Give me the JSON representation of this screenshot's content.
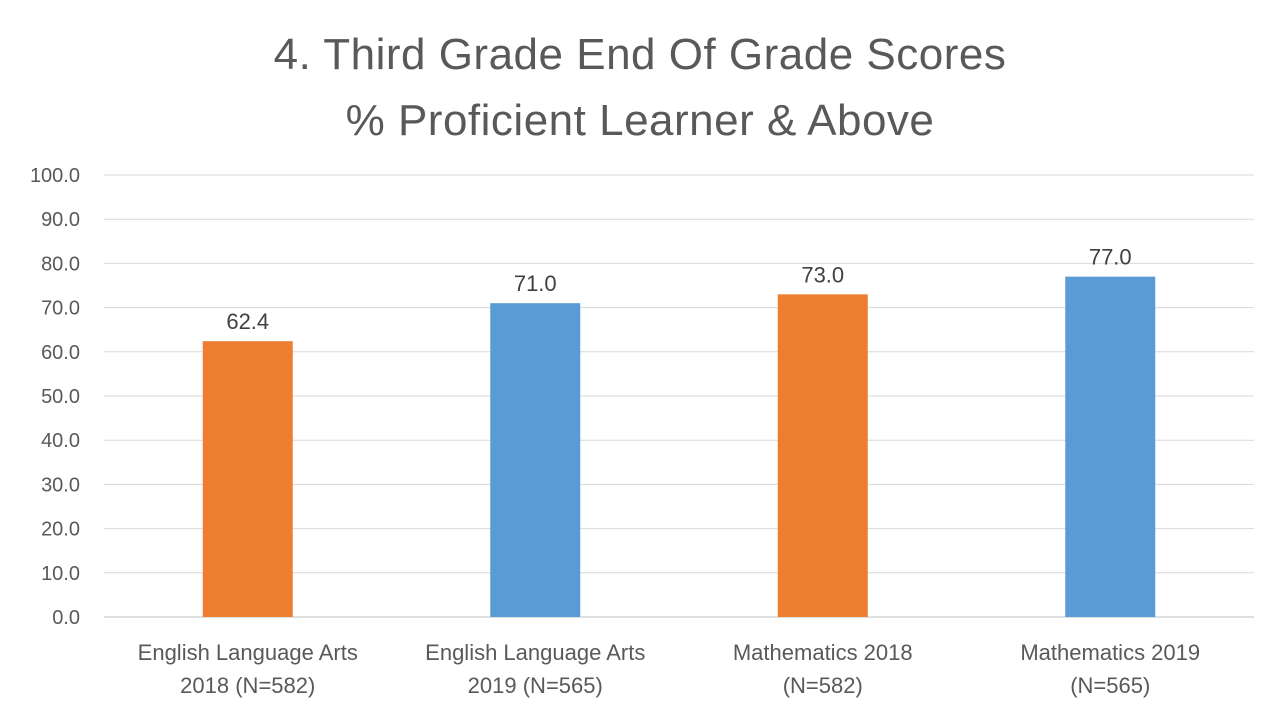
{
  "chart_data": {
    "type": "bar",
    "title_lines": [
      "4. Third Grade End Of Grade Scores",
      "% Proficient Learner & Above"
    ],
    "categories": [
      [
        "English Language Arts",
        "2018 (N=582)"
      ],
      [
        "English Language Arts",
        "2019 (N=565)"
      ],
      [
        "Mathematics 2018",
        "(N=582)"
      ],
      [
        "Mathematics 2019",
        "(N=565)"
      ]
    ],
    "values": [
      62.4,
      71.0,
      73.0,
      77.0
    ],
    "value_labels": [
      "62.4",
      "71.0",
      "73.0",
      "77.0"
    ],
    "bar_colors": [
      "#ED7D31",
      "#5B9BD5",
      "#ED7D31",
      "#5B9BD5"
    ],
    "ylim": [
      0,
      100
    ],
    "yticks": [
      0,
      10,
      20,
      30,
      40,
      50,
      60,
      70,
      80,
      90,
      100
    ],
    "ytick_labels": [
      "0.0",
      "10.0",
      "20.0",
      "30.0",
      "40.0",
      "50.0",
      "60.0",
      "70.0",
      "80.0",
      "90.0",
      "100.0"
    ],
    "grid": true,
    "xlabel": "",
    "ylabel": ""
  }
}
